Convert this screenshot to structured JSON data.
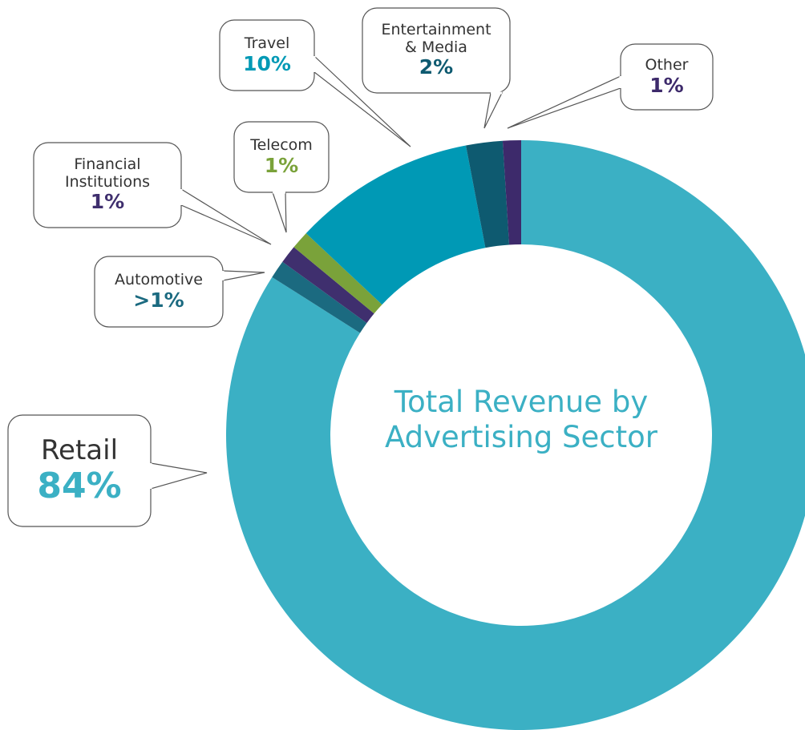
{
  "chart_data": {
    "type": "donut",
    "title": "Total Revenue by Advertising Sector",
    "categories": [
      "Retail",
      "Automotive",
      "Financial Institutions",
      "Telecom",
      "Travel",
      "Entertainment & Media",
      "Other"
    ],
    "values": [
      84,
      1,
      1,
      1,
      10,
      2,
      1
    ],
    "value_labels": [
      "84%",
      ">1%",
      "1%",
      "1%",
      "10%",
      "2%",
      "1%"
    ],
    "colors": [
      "#3bb0c4",
      "#1b6a80",
      "#3f2f6e",
      "#7aa23a",
      "#0099b5",
      "#0e5a70",
      "#3d2a6b"
    ]
  }
}
